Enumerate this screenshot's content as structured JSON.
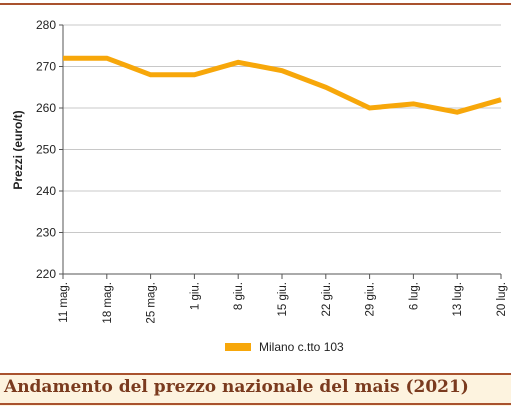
{
  "colors": {
    "series": "#f7a70a",
    "accent_rule": "#a9522e",
    "caption_bg": "#fdf3df",
    "caption_text": "#7a3a1e",
    "gridline": "#c8c8c8",
    "axis": "#555555"
  },
  "caption": {
    "title": "Andamento del prezzo nazionale del mais (2021)"
  },
  "chart_data": {
    "type": "line",
    "title": "",
    "xlabel": "",
    "ylabel": "Prezzi (euro/t)",
    "ylim": [
      220,
      280
    ],
    "yticks": [
      220,
      230,
      240,
      250,
      260,
      270,
      280
    ],
    "grid": true,
    "legend_position": "bottom-center",
    "categories": [
      "11 mag.",
      "18 mag.",
      "25 mag.",
      "1 giu.",
      "8 giu.",
      "15 giu.",
      "22 giu.",
      "29 giu.",
      "6 lug.",
      "13 lug.",
      "20 lug."
    ],
    "series": [
      {
        "name": "Milano  c.tto 103",
        "values": [
          272,
          272,
          268,
          268,
          271,
          269,
          265,
          260,
          261,
          259,
          262
        ]
      }
    ]
  }
}
